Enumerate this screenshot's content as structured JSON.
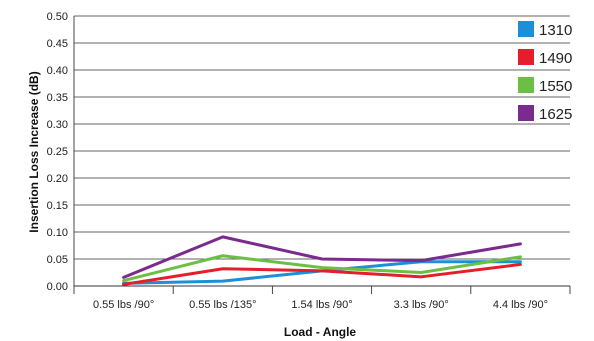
{
  "chart_data": {
    "type": "line",
    "categories": [
      "0.55 lbs /90°",
      "0.55 lbs /135°",
      "1.54 lbs /90°",
      "3.3 lbs /90°",
      "4.4 lbs /90°"
    ],
    "series": [
      {
        "name": "1310",
        "color": "#1e8fd6",
        "values": [
          0.005,
          0.009,
          0.028,
          0.045,
          0.045
        ]
      },
      {
        "name": "1490",
        "color": "#e41e2b",
        "values": [
          0.003,
          0.032,
          0.028,
          0.017,
          0.04
        ]
      },
      {
        "name": "1550",
        "color": "#6cbf45",
        "values": [
          0.01,
          0.056,
          0.034,
          0.025,
          0.054
        ]
      },
      {
        "name": "1625",
        "color": "#7b2a8e",
        "values": [
          0.016,
          0.091,
          0.05,
          0.047,
          0.078
        ]
      }
    ],
    "xlabel": "Load - Angle",
    "ylabel": "Insertion Loss Increase (dB)",
    "ylim": [
      0,
      0.5
    ],
    "yticks": [
      "0.00",
      "0.05",
      "0.10",
      "0.15",
      "0.20",
      "0.25",
      "0.30",
      "0.35",
      "0.40",
      "0.45",
      "0.50"
    ],
    "grid": true,
    "legend_position": "top-right"
  }
}
